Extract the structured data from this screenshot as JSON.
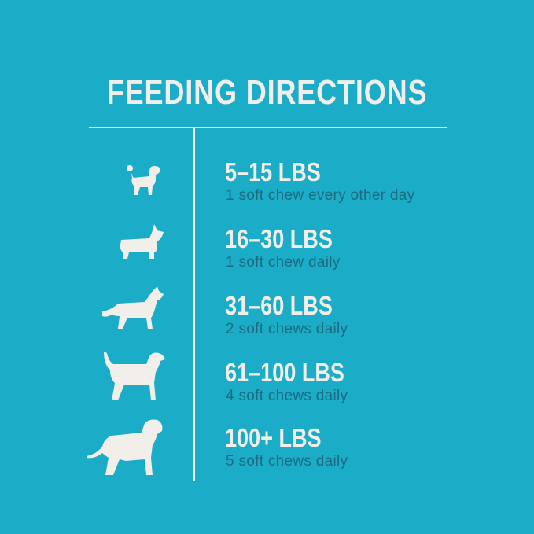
{
  "title": "FEEDING DIRECTIONS",
  "colors": {
    "background": "#1badc8",
    "heading": "#f2eee9",
    "dose_text": "#1c6b82"
  },
  "rows": [
    {
      "icon": "poodle-icon",
      "weight": "5–15 LBS",
      "dose": "1 soft chew every other day"
    },
    {
      "icon": "corgi-icon",
      "weight": "16–30 LBS",
      "dose": "1 soft chew daily"
    },
    {
      "icon": "medium-dog-icon",
      "weight": "31–60 LBS",
      "dose": "2 soft chews daily"
    },
    {
      "icon": "large-dog-icon",
      "weight": "61–100 LBS",
      "dose": "4 soft chews daily"
    },
    {
      "icon": "giant-dog-icon",
      "weight": "100+ LBS",
      "dose": "5 soft chews daily"
    }
  ]
}
